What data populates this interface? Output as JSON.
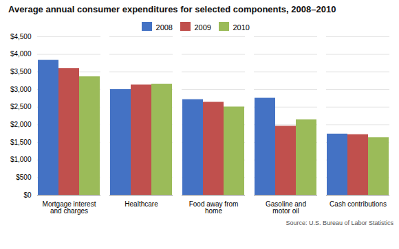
{
  "chart_data": {
    "type": "bar",
    "title": "Average annual consumer expenditures for selected components, 2008–2010",
    "source": "Source: U.S. Bureau of Labor Statistics",
    "categories": [
      "Mortgage interest\nand charges",
      "Healthcare",
      "Food away from\nhome",
      "Gasoline and\nmotor oil",
      "Cash contributions"
    ],
    "series": [
      {
        "name": "2008",
        "color": "#4472C4",
        "values": [
          3835,
          3000,
          2715,
          2755,
          1737
        ]
      },
      {
        "name": "2009",
        "color": "#C0504D",
        "values": [
          3600,
          3130,
          2640,
          1960,
          1720
        ]
      },
      {
        "name": "2010",
        "color": "#9BBB59",
        "values": [
          3365,
          3155,
          2505,
          2140,
          1633
        ]
      }
    ],
    "ylim": [
      0,
      4500
    ],
    "yticks": [
      {
        "value": 0,
        "label": "$0"
      },
      {
        "value": 500,
        "label": "$500"
      },
      {
        "value": 1000,
        "label": "$1,000"
      },
      {
        "value": 1500,
        "label": "$1,500"
      },
      {
        "value": 2000,
        "label": "$2,000"
      },
      {
        "value": 2500,
        "label": "$2,500"
      },
      {
        "value": 3000,
        "label": "$3,000"
      },
      {
        "value": 3500,
        "label": "$3,500"
      },
      {
        "value": 4000,
        "label": "$4,000"
      },
      {
        "value": 4500,
        "label": "$4,500"
      }
    ],
    "grid": true,
    "legend": "upper center"
  }
}
